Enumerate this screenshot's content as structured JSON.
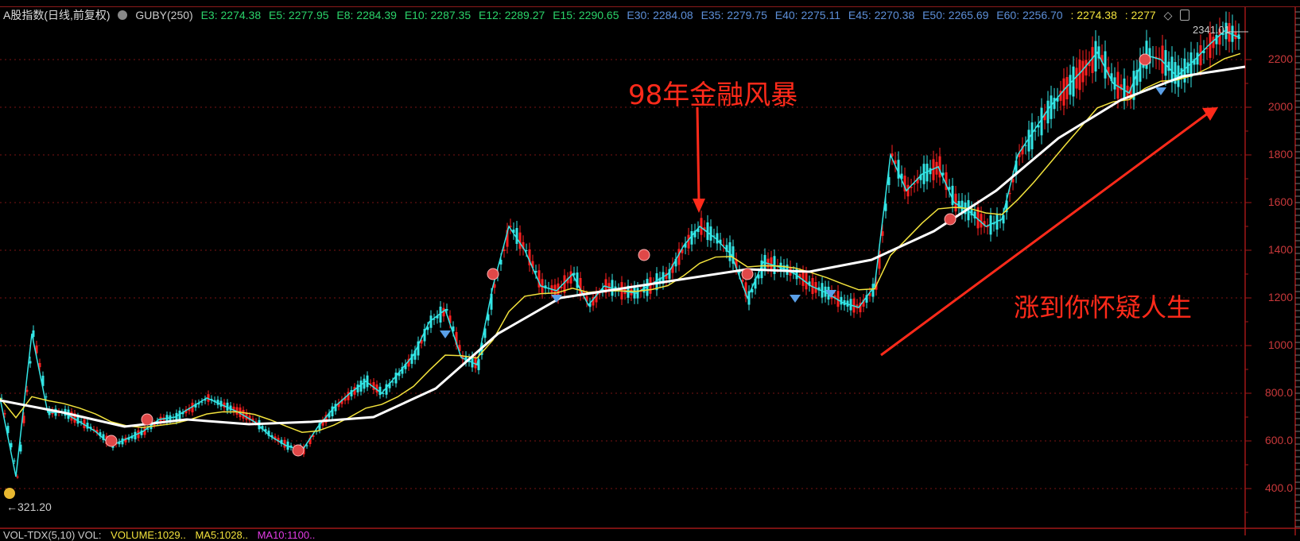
{
  "header": {
    "title": "A股指数(日线,前复权)",
    "indicator": "GUBY(250)",
    "ema_green": [
      "E3: 2274.38",
      "E5: 2277.95",
      "E8: 2284.39",
      "E10: 2287.35",
      "E12: 2289.27",
      "E15: 2290.65"
    ],
    "ema_blue": [
      "E30: 2284.08",
      "E35: 2279.75",
      "E40: 2275.11",
      "E45: 2270.38",
      "E50: 2265.69",
      "E60: 2256.70"
    ],
    "extra_yellow": [
      ": 2274.38",
      ": 2277"
    ]
  },
  "annotations": {
    "crisis": "98年金融风暴",
    "rally": "涨到你怀疑人生",
    "high_label": "2341.01",
    "low_label": "←321.20"
  },
  "volume_panel": {
    "title": "VOL-TDX(5,10) VOL:",
    "volume": "VOLUME:1029..",
    "ma5": "MA5:1028..",
    "ma10": "MA10:1100.."
  },
  "colors": {
    "background": "#000000",
    "up": "#ff2020",
    "down": "#33e6e6",
    "ma_short": "#f2e23c",
    "ma_long": "#ffffff",
    "grid": "#7a1515",
    "annotation": "#ff2a1a"
  },
  "chart_data": {
    "type": "line",
    "title": "A股指数(日线,前复权)",
    "y_ticks": [
      "2200",
      "2000",
      "1800",
      "1600",
      "1400",
      "1200",
      "1000",
      "800.0",
      "600.0",
      "400.0"
    ],
    "ylim": [
      300,
      2400
    ],
    "grid": true,
    "high": 2341.01,
    "low": 321.2,
    "series": [
      {
        "values": [
          780,
          450,
          1050,
          720,
          720,
          680,
          640,
          580,
          610,
          640,
          690,
          700,
          740,
          780,
          750,
          720,
          680,
          620,
          580,
          560,
          660,
          740,
          800,
          850,
          800,
          880,
          960,
          1100,
          1150,
          950,
          920,
          1250,
          1500,
          1400,
          1250,
          1230,
          1300,
          1170,
          1250,
          1230,
          1220,
          1260,
          1300,
          1420,
          1500,
          1450,
          1380,
          1200,
          1350,
          1330,
          1300,
          1250,
          1220,
          1180,
          1160,
          1250,
          1800,
          1650,
          1720,
          1750,
          1600,
          1560,
          1500,
          1530,
          1800,
          1900,
          2000,
          2080,
          2150,
          2230,
          2100,
          2060,
          2220,
          2200,
          2130,
          2190,
          2260,
          2320,
          2290
        ]
      },
      {
        "name": "GUBY(250)",
        "values": [
          770,
          720,
          660,
          690,
          670,
          680,
          700,
          820,
          1050,
          1200,
          1240,
          1280,
          1320,
          1310,
          1360,
          1480,
          1650,
          1870,
          2030,
          2130,
          2170
        ]
      }
    ]
  }
}
